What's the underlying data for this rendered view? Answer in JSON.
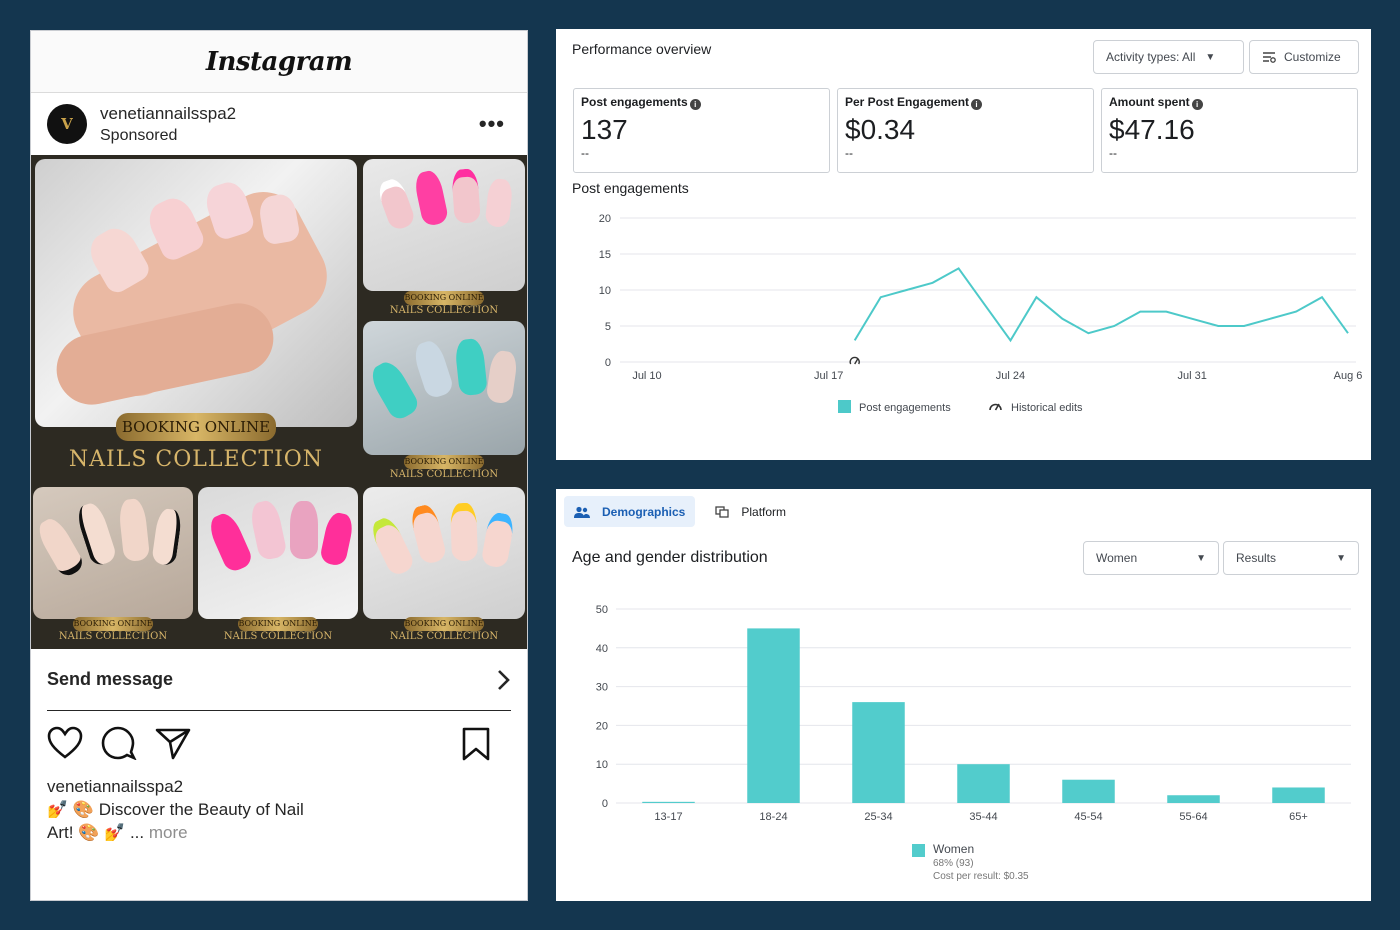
{
  "instagram": {
    "logo": "Instagram",
    "account": {
      "handle": "venetiannailsspa2",
      "sponsored": "Sponsored",
      "avatar_letter": "V"
    },
    "collage": {
      "main_pill": "BOOKING ONLINE",
      "main_caption": "NAILS COLLECTION",
      "tile_pill": "BOOKING ONLINE",
      "tile_caption": "NAILS COLLECTION"
    },
    "cta": {
      "label": "Send message"
    },
    "caption": {
      "handle": "venetiannailsspa2",
      "line1": "💅 🎨 Discover the Beauty of Nail",
      "line2": "Art! 🎨 💅 ...",
      "more": "more"
    }
  },
  "performance": {
    "title": "Performance overview",
    "activity_button": "Activity types: All",
    "customize_button": "Customize",
    "metrics": [
      {
        "label": "Post engagements",
        "value": "137",
        "sub": "--"
      },
      {
        "label": "Per Post Engagement",
        "value": "$0.34",
        "sub": "--"
      },
      {
        "label": "Amount spent",
        "value": "$47.16",
        "sub": "--"
      }
    ],
    "chart_title": "Post engagements",
    "legend": {
      "series": "Post engagements",
      "edits": "Historical edits"
    }
  },
  "demographics": {
    "tabs": [
      {
        "label": "Demographics"
      },
      {
        "label": "Platform"
      }
    ],
    "title": "Age and gender distribution",
    "gender_select": "Women",
    "metric_select": "Results",
    "legend": {
      "name": "Women",
      "share": "68% (93)",
      "cost": "Cost per result: $0.35"
    }
  },
  "chart_data": [
    {
      "type": "line",
      "title": "Post engagements",
      "x": [
        "Jul 18",
        "Jul 19",
        "Jul 20",
        "Jul 21",
        "Jul 22",
        "Jul 23",
        "Jul 24",
        "Jul 25",
        "Jul 26",
        "Jul 27",
        "Jul 28",
        "Jul 29",
        "Jul 30",
        "Jul 31",
        "Aug 1",
        "Aug 2",
        "Aug 3",
        "Aug 4",
        "Aug 5",
        "Aug 6"
      ],
      "series": [
        {
          "name": "Post engagements",
          "values": [
            3,
            9,
            10,
            11,
            13,
            8,
            3,
            9,
            6,
            4,
            5,
            7,
            7,
            6,
            5,
            5,
            6,
            7,
            9,
            4
          ]
        }
      ],
      "x_ticks": [
        "Jul 10",
        "Jul 17",
        "Jul 24",
        "Jul 31",
        "Aug 6"
      ],
      "x_range": [
        "Jul 10",
        "Aug 6"
      ],
      "ylim": [
        0,
        20
      ],
      "y_ticks": [
        0,
        5,
        10,
        15,
        20
      ],
      "historical_edit_date": "Jul 18",
      "grid": true,
      "legend_position": "bottom",
      "color": "#4dc9c9"
    },
    {
      "type": "bar",
      "title": "Age and gender distribution",
      "categories": [
        "13-17",
        "18-24",
        "25-34",
        "35-44",
        "45-54",
        "55-64",
        "65+"
      ],
      "series": [
        {
          "name": "Women",
          "values": [
            0.3,
            45,
            26,
            10,
            6,
            2,
            4
          ]
        }
      ],
      "ylim": [
        0,
        50
      ],
      "y_ticks": [
        0,
        10,
        20,
        30,
        40,
        50
      ],
      "grid": true,
      "legend_position": "bottom",
      "color": "#52cccc"
    }
  ]
}
